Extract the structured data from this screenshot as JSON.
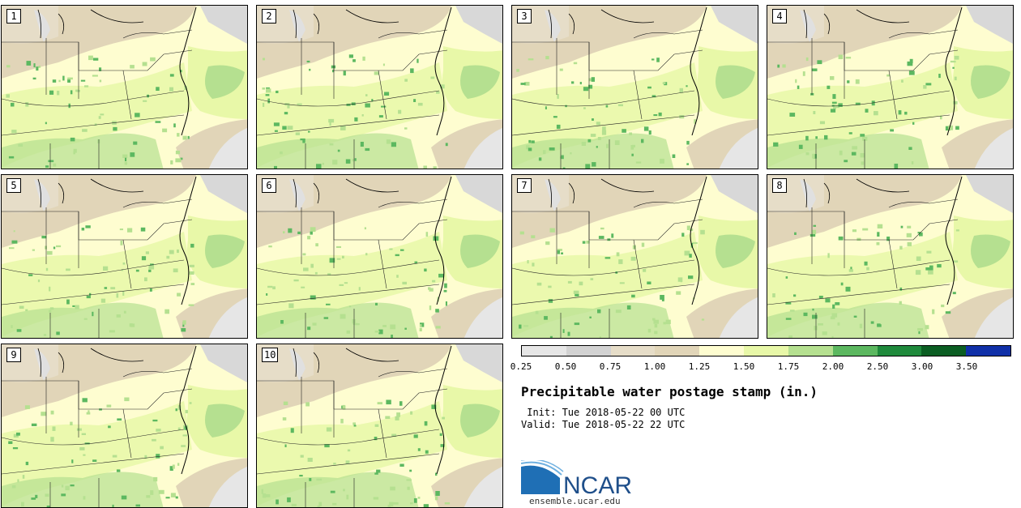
{
  "panels": [
    {
      "label": "1"
    },
    {
      "label": "2"
    },
    {
      "label": "3"
    },
    {
      "label": "4"
    },
    {
      "label": "5"
    },
    {
      "label": "6"
    },
    {
      "label": "7"
    },
    {
      "label": "8"
    },
    {
      "label": "9"
    },
    {
      "label": "10"
    }
  ],
  "legend": {
    "levels": [
      "0.25",
      "0.50",
      "0.75",
      "1.00",
      "1.25",
      "1.50",
      "1.75",
      "2.00",
      "2.50",
      "3.00",
      "3.50"
    ],
    "colors": [
      "#e6e6e6",
      "#d2d2d2",
      "#e6ddc8",
      "#e1d5b8",
      "#fefdd0",
      "#e8f8a8",
      "#b5e090",
      "#5cb860",
      "#1f8a3c",
      "#0b5e23",
      "#1030a8"
    ]
  },
  "chart_data": {
    "type": "heatmap",
    "title": "Precipitable water postage stamp (in.)",
    "members": [
      "1",
      "2",
      "3",
      "4",
      "5",
      "6",
      "7",
      "8",
      "9",
      "10"
    ],
    "colorbar_levels": [
      0.25,
      0.5,
      0.75,
      1.0,
      1.25,
      1.5,
      1.75,
      2.0,
      2.5,
      3.0,
      3.5
    ]
  },
  "info": {
    "title": "Precipitable water postage stamp (in.)",
    "init": " Init: Tue 2018-05-22 00 UTC",
    "valid": "Valid: Tue 2018-05-22 22 UTC"
  },
  "logo": {
    "text": "NCAR",
    "url": "ensemble.ucar.edu",
    "colors": {
      "blue": "#1f6fb5",
      "light": "#6fb0e0"
    }
  }
}
